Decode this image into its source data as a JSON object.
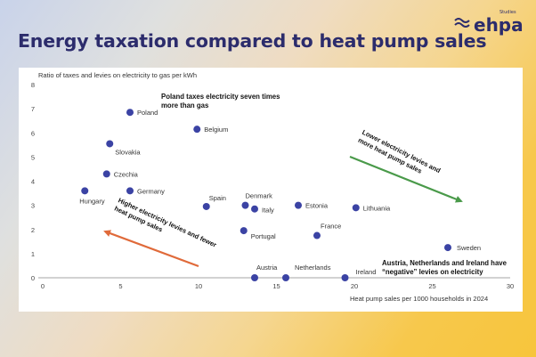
{
  "title": "Energy taxation compared to heat pump sales",
  "logo": {
    "text": "ehpa",
    "tagline": "Studies"
  },
  "chart_data": {
    "type": "scatter",
    "ylabel": "Ratio of taxes and levies on electricity to gas per kWh",
    "xlabel": "Heat pump sales per 1000 households in 2024",
    "xlim": [
      0,
      30
    ],
    "ylim": [
      0,
      8
    ],
    "xticks": [
      "0",
      "5",
      "10",
      "15",
      "20",
      "25",
      "30"
    ],
    "yticks": [
      "0",
      "1",
      "2",
      "3",
      "4",
      "5",
      "6",
      "7",
      "8"
    ],
    "grid": false,
    "point_color": "#3b43a4",
    "points": [
      {
        "label": "Poland",
        "x": 5.6,
        "y": 6.85
      },
      {
        "label": "Belgium",
        "x": 9.9,
        "y": 6.15
      },
      {
        "label": "Slovakia",
        "x": 4.3,
        "y": 5.55
      },
      {
        "label": "Czechia",
        "x": 4.1,
        "y": 4.3
      },
      {
        "label": "Hungary",
        "x": 2.7,
        "y": 3.6
      },
      {
        "label": "Germany",
        "x": 5.6,
        "y": 3.6
      },
      {
        "label": "Spain",
        "x": 10.5,
        "y": 2.95
      },
      {
        "label": "Denmark",
        "x": 13.0,
        "y": 3.0
      },
      {
        "label": "Italy",
        "x": 13.6,
        "y": 2.85
      },
      {
        "label": "Estonia",
        "x": 16.4,
        "y": 3.0
      },
      {
        "label": "Lithuania",
        "x": 20.1,
        "y": 2.9
      },
      {
        "label": "Portugal",
        "x": 12.9,
        "y": 1.95
      },
      {
        "label": "France",
        "x": 17.6,
        "y": 1.75
      },
      {
        "label": "Sweden",
        "x": 26.0,
        "y": 1.25
      },
      {
        "label": "Austria",
        "x": 13.6,
        "y": 0.0
      },
      {
        "label": "Netherlands",
        "x": 15.6,
        "y": 0.0
      },
      {
        "label": "Ireland",
        "x": 19.4,
        "y": 0.0
      }
    ],
    "annotations": {
      "poland_note_line1": "Poland taxes electricity seven times",
      "poland_note_line2": "more than gas",
      "lower_levies_line1": "Lower electricity levies and",
      "lower_levies_line2": "more heat pump sales",
      "higher_levies_line1": "Higher electricity levies and fewer",
      "higher_levies_line2": "heat pump sales",
      "negative_note_line1": "Austria, Netherlands and Ireland have",
      "negative_note_line2": "“negative” levies on electricity"
    },
    "colors": {
      "lower_arrow": "#4a9a4a",
      "higher_arrow": "#e06a3a",
      "axis": "#555555",
      "text": "#333333"
    }
  }
}
